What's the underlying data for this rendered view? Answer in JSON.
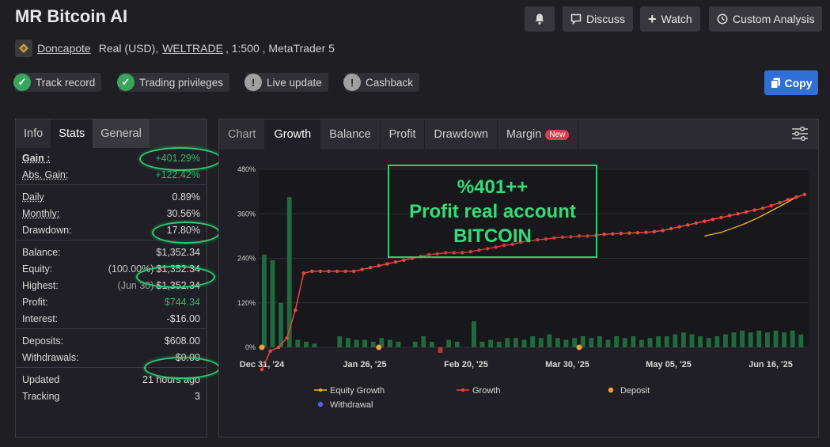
{
  "header": {
    "title": "MR Bitcoin AI",
    "discuss_label": "Discuss",
    "watch_label": "Watch",
    "analysis_label": "Custom Analysis"
  },
  "account": {
    "owner": "Doncapote",
    "type": "Real (USD),",
    "broker": "WELTRADE",
    "details": ", 1:500 , MetaTrader 5"
  },
  "badges": [
    {
      "label": "Track record",
      "status": "ok"
    },
    {
      "label": "Trading privileges",
      "status": "ok"
    },
    {
      "label": "Live update",
      "status": "warn"
    },
    {
      "label": "Cashback",
      "status": "warn"
    }
  ],
  "copy_label": "Copy",
  "left_tabs": [
    "Info",
    "Stats",
    "General"
  ],
  "stats": {
    "gain": {
      "label": "Gain :",
      "value": "+401.29%"
    },
    "abs_gain": {
      "label": "Abs. Gain:",
      "value": "+122.42%"
    },
    "daily": {
      "label": "Daily",
      "value": "0.89%"
    },
    "monthly": {
      "label": "Monthly:",
      "value": "30.56%"
    },
    "drawdown": {
      "label": "Drawdown:",
      "value": "17.80%"
    },
    "balance": {
      "label": "Balance:",
      "value": "$1,352.34"
    },
    "equity": {
      "label": "Equity:",
      "prefix": "(100.00%)",
      "value": "$1,352.34"
    },
    "highest": {
      "label": "Highest:",
      "prefix": "(Jun 30)",
      "value": "$1,352.34"
    },
    "profit": {
      "label": "Profit:",
      "value": "$744.34"
    },
    "interest": {
      "label": "Interest:",
      "value": "-$16.00"
    },
    "deposits": {
      "label": "Deposits:",
      "value": "$608.00"
    },
    "withdrawals": {
      "label": "Withdrawals:",
      "value": "$0.00"
    },
    "updated": {
      "label": "Updated",
      "value": "21 hours ago"
    },
    "tracking": {
      "label": "Tracking",
      "value": "3"
    }
  },
  "right_tabs": {
    "chart": "Chart",
    "growth": "Growth",
    "balance": "Balance",
    "profit": "Profit",
    "drawdown": "Drawdown",
    "margin": "Margin",
    "new_badge": "New"
  },
  "overlay": {
    "line1": "%401++",
    "line2": "Profit real account",
    "line3": "BITCOIN"
  },
  "colors": {
    "accent_green": "#2ecc71",
    "growth_line": "#e8483c",
    "equity_line": "#f0b429",
    "deposit": "#f0a040",
    "withdrawal": "#5b5bf0",
    "bar": "#1f6b3f"
  },
  "chart_data": {
    "type": "line",
    "y_ticks": [
      "480%",
      "360%",
      "240%",
      "120%",
      "0%"
    ],
    "ylim": [
      0,
      480
    ],
    "x_ticks": [
      "Dec 31, '24",
      "Jan 26, '25",
      "Feb 20, '25",
      "Mar 30, '25",
      "May 05, '25",
      "Jun 16, '25"
    ],
    "legend": [
      "Equity Growth",
      "Growth",
      "Deposit",
      "Withdrawal"
    ],
    "growth": [
      -60,
      -10,
      0,
      25,
      100,
      200,
      205,
      205,
      205,
      205,
      205,
      205,
      210,
      215,
      220,
      225,
      230,
      235,
      240,
      245,
      250,
      252,
      255,
      255,
      255,
      258,
      262,
      266,
      270,
      275,
      278,
      283,
      287,
      290,
      292,
      295,
      297,
      298,
      300,
      300,
      302,
      305,
      306,
      307,
      308,
      309,
      310,
      312,
      315,
      320,
      325,
      330,
      335,
      340,
      345,
      350,
      355,
      360,
      365,
      370,
      375,
      382,
      390,
      398,
      405,
      412
    ],
    "equity_growth": [
      300,
      305,
      310,
      318,
      326,
      335,
      345,
      356,
      368,
      380,
      392,
      405,
      412
    ],
    "bars": [
      250,
      235,
      120,
      405,
      20,
      15,
      10,
      0,
      0,
      30,
      25,
      20,
      20,
      15,
      25,
      20,
      15,
      0,
      15,
      30,
      15,
      -15,
      20,
      15,
      0,
      70,
      15,
      20,
      15,
      25,
      25,
      20,
      30,
      25,
      35,
      25,
      20,
      25,
      30,
      25,
      30,
      20,
      30,
      25,
      30,
      20,
      25,
      30,
      30,
      35,
      40,
      35,
      30,
      25,
      30,
      35,
      40,
      45,
      40,
      45,
      40,
      45,
      40,
      45,
      35
    ],
    "deposits_x_index": [
      0,
      14,
      38
    ],
    "withdrawals_x_index": []
  }
}
